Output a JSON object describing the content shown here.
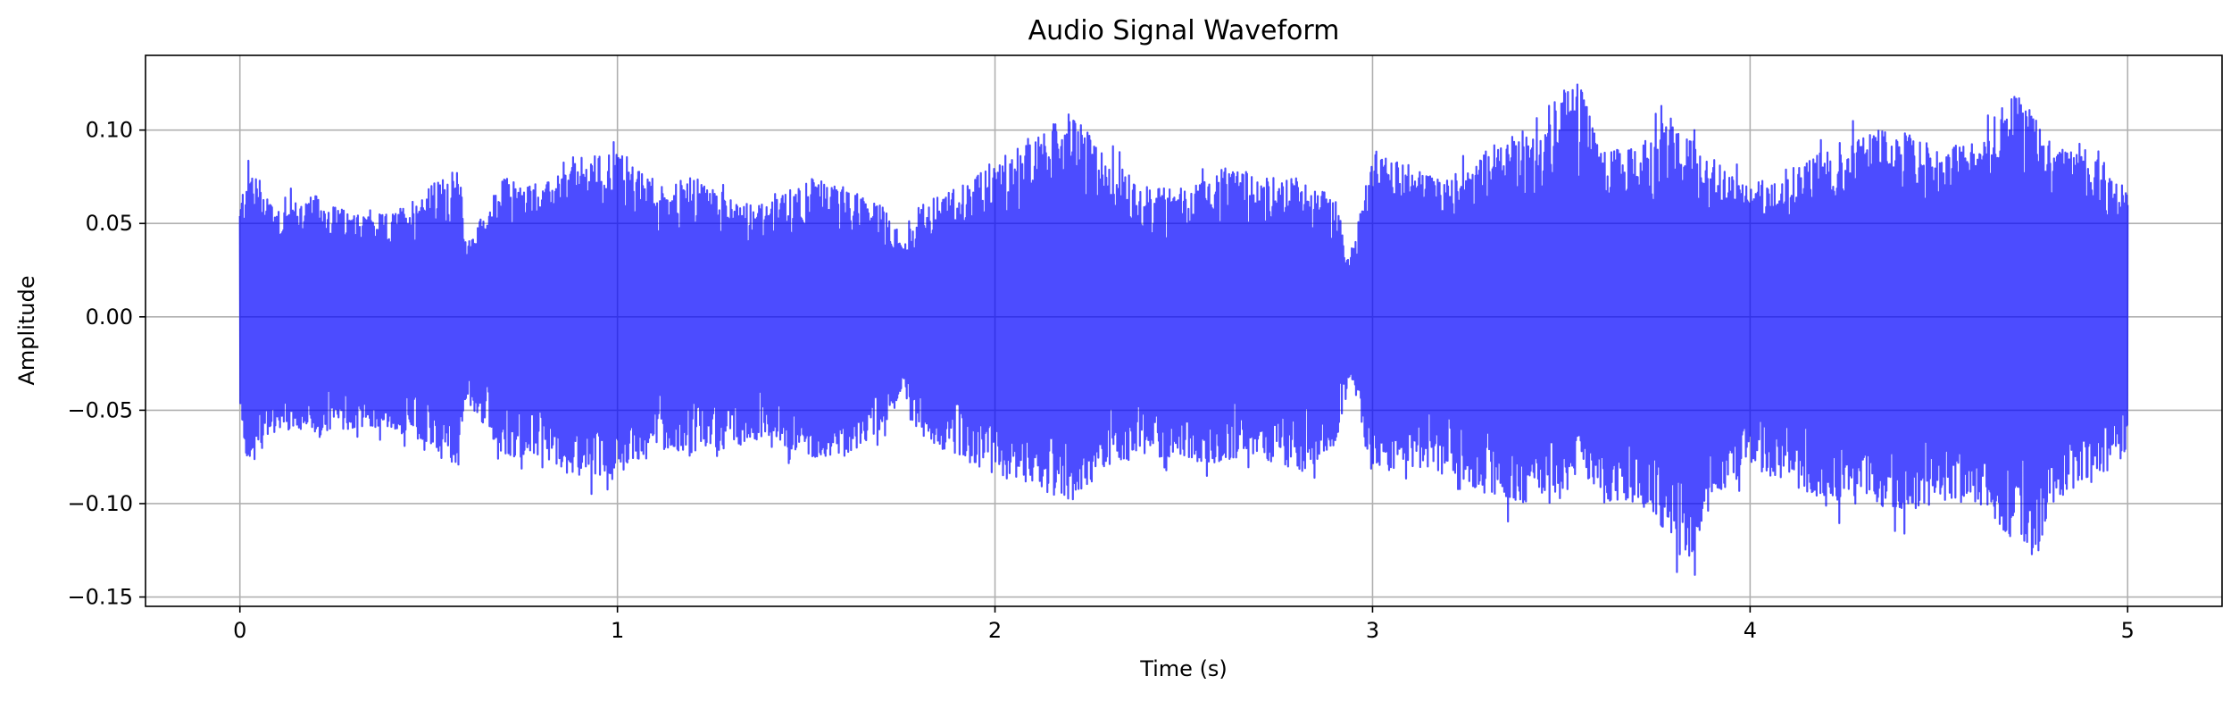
{
  "chart_data": {
    "type": "line",
    "title": "Audio Signal Waveform",
    "xlabel": "Time (s)",
    "ylabel": "Amplitude",
    "xlim": [
      -0.25,
      5.25
    ],
    "ylim": [
      -0.155,
      0.14
    ],
    "xticks": [
      {
        "value": 0,
        "label": "0"
      },
      {
        "value": 1,
        "label": "1"
      },
      {
        "value": 2,
        "label": "2"
      },
      {
        "value": 3,
        "label": "3"
      },
      {
        "value": 4,
        "label": "4"
      },
      {
        "value": 5,
        "label": "5"
      }
    ],
    "yticks": [
      {
        "value": 0.1,
        "label": "0.10"
      },
      {
        "value": 0.05,
        "label": "0.05"
      },
      {
        "value": 0.0,
        "label": "0.00"
      },
      {
        "value": -0.05,
        "label": "−0.05"
      },
      {
        "value": -0.1,
        "label": "−0.10"
      },
      {
        "value": -0.15,
        "label": "−0.15"
      }
    ],
    "grid": true,
    "series": [
      {
        "color": "#0000ff",
        "opacity": 0.7,
        "duration_s": 5.0,
        "envelope": {
          "t": [
            0.0,
            0.02,
            0.1,
            0.2,
            0.3,
            0.4,
            0.5,
            0.58,
            0.6,
            0.7,
            0.8,
            0.9,
            1.0,
            1.1,
            1.2,
            1.3,
            1.4,
            1.5,
            1.6,
            1.7,
            1.76,
            1.8,
            1.9,
            2.0,
            2.1,
            2.2,
            2.3,
            2.4,
            2.5,
            2.6,
            2.7,
            2.8,
            2.9,
            2.94,
            3.0,
            3.1,
            3.2,
            3.3,
            3.4,
            3.5,
            3.55,
            3.6,
            3.7,
            3.8,
            3.83,
            3.9,
            4.0,
            4.1,
            4.2,
            4.3,
            4.4,
            4.5,
            4.6,
            4.7,
            4.75,
            4.8,
            4.9,
            5.0
          ],
          "max": [
            0.06,
            0.085,
            0.06,
            0.065,
            0.055,
            0.055,
            0.07,
            0.08,
            0.04,
            0.075,
            0.07,
            0.085,
            0.09,
            0.07,
            0.075,
            0.065,
            0.06,
            0.075,
            0.07,
            0.06,
            0.04,
            0.06,
            0.07,
            0.085,
            0.095,
            0.11,
            0.085,
            0.07,
            0.07,
            0.08,
            0.075,
            0.075,
            0.065,
            0.03,
            0.09,
            0.08,
            0.075,
            0.09,
            0.1,
            0.12,
            0.13,
            0.09,
            0.09,
            0.11,
            0.1,
            0.085,
            0.07,
            0.08,
            0.09,
            0.1,
            0.1,
            0.09,
            0.095,
            0.12,
            0.115,
            0.09,
            0.09,
            0.07
          ],
          "min": [
            -0.05,
            -0.08,
            -0.06,
            -0.065,
            -0.06,
            -0.06,
            -0.07,
            -0.08,
            -0.045,
            -0.075,
            -0.075,
            -0.085,
            -0.085,
            -0.07,
            -0.075,
            -0.07,
            -0.065,
            -0.075,
            -0.075,
            -0.06,
            -0.04,
            -0.065,
            -0.075,
            -0.085,
            -0.09,
            -0.1,
            -0.08,
            -0.075,
            -0.075,
            -0.08,
            -0.075,
            -0.085,
            -0.07,
            -0.035,
            -0.085,
            -0.08,
            -0.085,
            -0.095,
            -0.1,
            -0.1,
            -0.08,
            -0.1,
            -0.1,
            -0.12,
            -0.14,
            -0.1,
            -0.08,
            -0.09,
            -0.1,
            -0.1,
            -0.105,
            -0.1,
            -0.1,
            -0.12,
            -0.135,
            -0.1,
            -0.085,
            -0.08
          ]
        }
      }
    ]
  }
}
